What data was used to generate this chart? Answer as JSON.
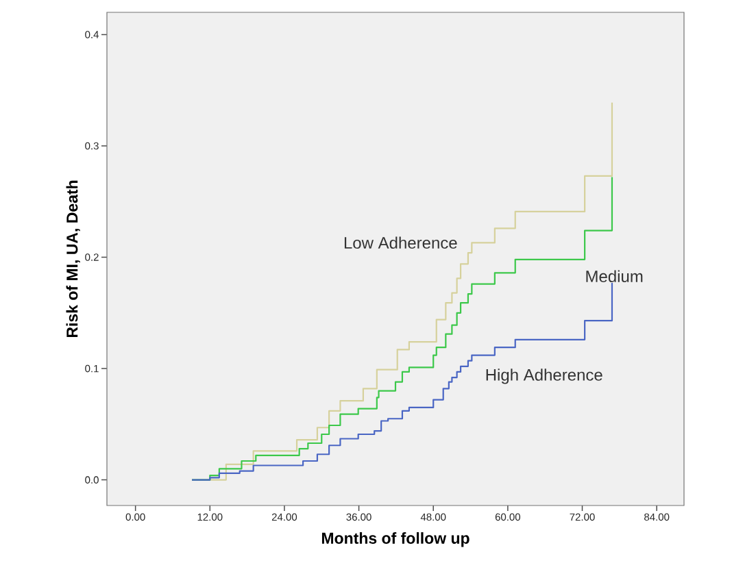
{
  "chart_data": {
    "type": "step",
    "xlabel": "Months of follow up",
    "ylabel": "Risk of MI, UA, Death",
    "xlim": [
      -4.6,
      88.4
    ],
    "ylim": [
      -0.023,
      0.42
    ],
    "xticks": [
      {
        "value": 0,
        "label": "0.00"
      },
      {
        "value": 12,
        "label": "12.00"
      },
      {
        "value": 24,
        "label": "24.00"
      },
      {
        "value": 36,
        "label": "36.00"
      },
      {
        "value": 48,
        "label": "48.00"
      },
      {
        "value": 60,
        "label": "60.00"
      },
      {
        "value": 72,
        "label": "72.00"
      },
      {
        "value": 84,
        "label": "84.00"
      }
    ],
    "yticks": [
      {
        "value": 0,
        "label": "0.0"
      },
      {
        "value": 0.1,
        "label": "0.1"
      },
      {
        "value": 0.2,
        "label": "0.2"
      },
      {
        "value": 0.3,
        "label": "0.3"
      },
      {
        "value": 0.4,
        "label": "0.4"
      }
    ],
    "grid": false,
    "legend": false,
    "series": [
      {
        "name": "Low Adherence",
        "color": "#d6d19c",
        "x": [
          9.1,
          14.6,
          19.0,
          23.1,
          26.0,
          29.3,
          31.2,
          33.0,
          36.7,
          38.9,
          42.2,
          44.1,
          48.5,
          50.0,
          51.0,
          51.8,
          52.4,
          53.6,
          54.2,
          57.9,
          61.2,
          72.4,
          76.8
        ],
        "values": [
          0,
          0.014,
          0.026,
          0.026,
          0.036,
          0.047,
          0.062,
          0.071,
          0.082,
          0.099,
          0.117,
          0.124,
          0.144,
          0.159,
          0.168,
          0.181,
          0.194,
          0.204,
          0.213,
          0.226,
          0.241,
          0.273,
          0.339
        ]
      },
      {
        "name": "Medium",
        "color": "#3cc84a",
        "x": [
          9.1,
          12.0,
          13.5,
          17.1,
          19.4,
          26.4,
          27.8,
          30.0,
          31.2,
          33.0,
          35.9,
          38.9,
          39.2,
          41.9,
          43.0,
          44.1,
          48.0,
          48.5,
          50.0,
          51.0,
          51.8,
          52.4,
          53.6,
          54.2,
          57.9,
          61.2,
          72.4,
          76.8
        ],
        "values": [
          0,
          0.004,
          0.01,
          0.017,
          0.022,
          0.028,
          0.033,
          0.041,
          0.049,
          0.059,
          0.064,
          0.074,
          0.08,
          0.088,
          0.097,
          0.101,
          0.112,
          0.119,
          0.131,
          0.139,
          0.15,
          0.159,
          0.167,
          0.176,
          0.186,
          0.198,
          0.224,
          0.272
        ]
      },
      {
        "name": "High Adherence",
        "color": "#4a66c4",
        "x": [
          9.1,
          12.0,
          13.5,
          16.8,
          19.0,
          27.0,
          29.3,
          31.2,
          33.0,
          35.9,
          38.5,
          39.6,
          40.7,
          43.0,
          44.1,
          48.0,
          49.6,
          50.5,
          51.0,
          51.8,
          52.4,
          53.6,
          54.2,
          57.9,
          61.2,
          72.4,
          76.8
        ],
        "values": [
          0,
          0.002,
          0.006,
          0.008,
          0.013,
          0.017,
          0.023,
          0.031,
          0.037,
          0.041,
          0.044,
          0.053,
          0.055,
          0.062,
          0.065,
          0.072,
          0.082,
          0.088,
          0.092,
          0.097,
          0.102,
          0.107,
          0.112,
          0.119,
          0.126,
          0.143,
          0.177
        ]
      }
    ]
  }
}
